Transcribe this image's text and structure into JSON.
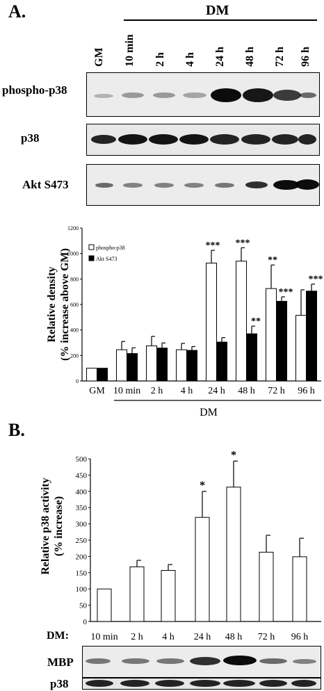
{
  "panelA": {
    "letter": "A.",
    "dm_label": "DM",
    "lanes": [
      "GM",
      "10 min",
      "2 h",
      "4 h",
      "24 h",
      "48 h",
      "72 h",
      "96 h"
    ],
    "blot_rows": [
      "phospho-p38",
      "p38",
      "Akt S473"
    ]
  },
  "panelB": {
    "letter": "B.",
    "dm_prefix": "DM:",
    "blot_rows": [
      "MBP",
      "p38"
    ]
  },
  "chart_data": [
    {
      "type": "bar",
      "categories": [
        "GM",
        "10 min",
        "2 h",
        "4 h",
        "24 h",
        "48 h",
        "72 h",
        "96 h"
      ],
      "series": [
        {
          "name": "phospho-p38",
          "values": [
            100,
            245,
            275,
            245,
            925,
            940,
            725,
            515
          ],
          "error": [
            0,
            65,
            75,
            50,
            100,
            105,
            185,
            200
          ],
          "color": "#ffffff"
        },
        {
          "name": "Akt S473",
          "values": [
            100,
            215,
            258,
            240,
            305,
            370,
            625,
            705
          ],
          "error": [
            0,
            45,
            40,
            30,
            35,
            60,
            35,
            55
          ],
          "color": "#000000"
        }
      ],
      "significance": {
        "phospho-p38": [
          "",
          "",
          "",
          "",
          "***",
          "***",
          "**",
          ""
        ],
        "Akt S473": [
          "",
          "",
          "",
          "",
          "",
          "**",
          "***",
          "***"
        ]
      },
      "ylabel_line1": "Relative density",
      "ylabel_line2": "(% increase above GM)",
      "xlabel": "DM",
      "ylim": [
        0,
        1200
      ],
      "yticks": [
        0,
        200,
        400,
        600,
        800,
        1000,
        1200
      ],
      "legend_position": "top-left",
      "grid": false
    },
    {
      "type": "bar",
      "categories": [
        "10 min",
        "2 h",
        "4 h",
        "24 h",
        "48 h",
        "72 h",
        "96 h"
      ],
      "series": [
        {
          "name": "",
          "values": [
            100,
            168,
            157,
            320,
            413,
            213,
            199
          ],
          "error": [
            0,
            20,
            18,
            80,
            80,
            52,
            57
          ],
          "color": "#ffffff"
        }
      ],
      "significance": [
        "",
        "",
        "",
        "*",
        "*",
        "",
        ""
      ],
      "ylabel_line1": "Relative p38 activity",
      "ylabel_line2": "(% increase)",
      "xlabel": "",
      "ylim": [
        0,
        500
      ],
      "yticks": [
        0,
        50,
        100,
        150,
        200,
        250,
        300,
        350,
        400,
        450,
        500
      ],
      "grid": false
    }
  ]
}
